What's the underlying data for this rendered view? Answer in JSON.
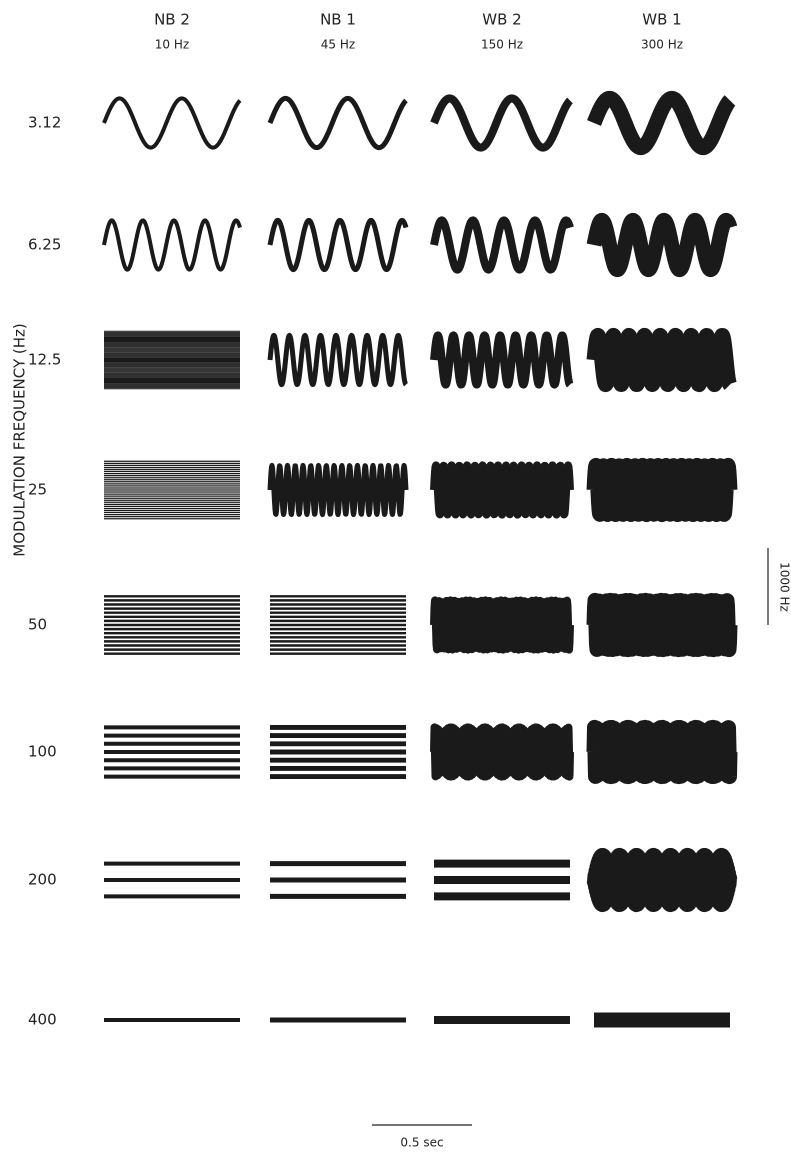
{
  "columns": [
    {
      "name": "NB 2",
      "bandwidth": "10 Hz"
    },
    {
      "name": "NB 1",
      "bandwidth": "45 Hz"
    },
    {
      "name": "WB 2",
      "bandwidth": "150 Hz"
    },
    {
      "name": "WB 1",
      "bandwidth": "300 Hz"
    }
  ],
  "rows": [
    "3.12",
    "6.25",
    "12.5",
    "25",
    "50",
    "100",
    "200",
    "400"
  ],
  "y_axis_label": "MODULATION FREQUENCY (Hz)",
  "scale_bars": {
    "frequency": "1000 Hz",
    "time": "0.5 sec"
  }
}
